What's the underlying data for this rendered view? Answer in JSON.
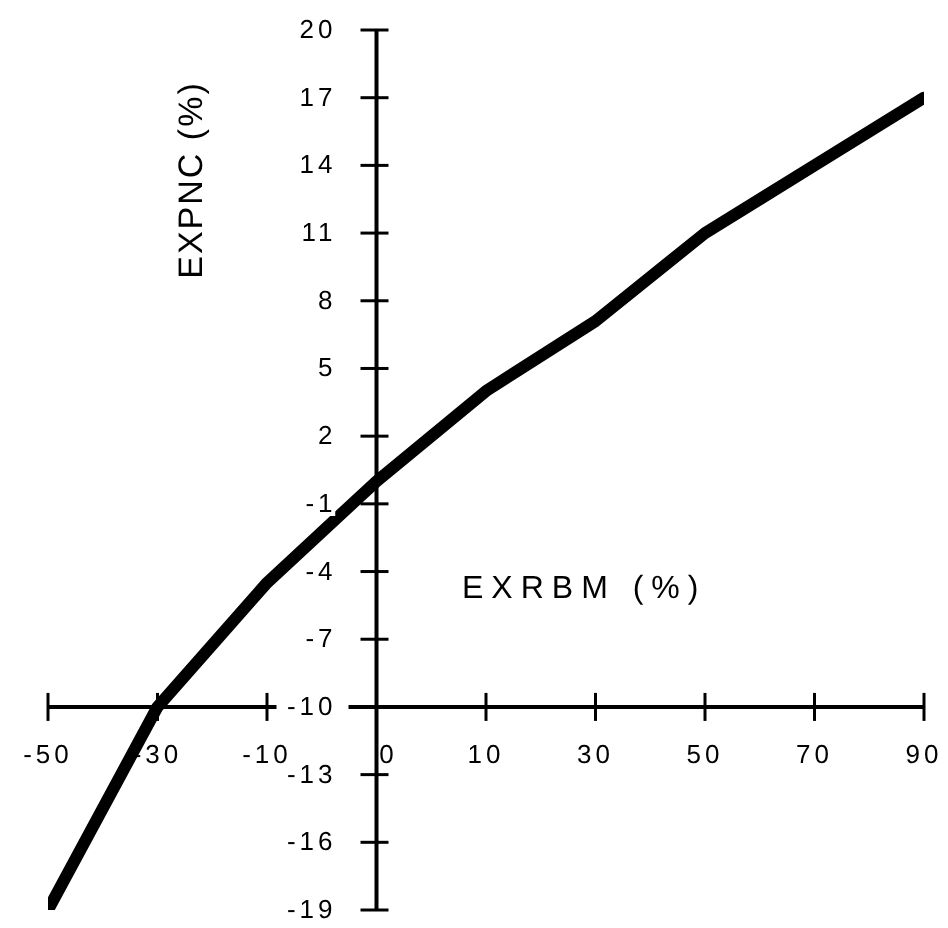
{
  "chart_data": {
    "type": "line",
    "xlabel": "EXRBM (%)",
    "ylabel": "EXPNC (%)",
    "categories": [
      "-50",
      "-30",
      "-10",
      "0",
      "10",
      "30",
      "50",
      "70",
      "90"
    ],
    "series": [
      {
        "color": "#000000",
        "values": [
          -19,
          -10,
          -4.5,
          0,
          4,
          7.1,
          11,
          14,
          17
        ]
      }
    ],
    "ylim": [
      -19,
      20
    ],
    "yticks": [
      20,
      17,
      14,
      11,
      8,
      5,
      2,
      -1,
      -4,
      -7,
      -10,
      -13,
      -16,
      -19
    ],
    "marker": "none",
    "line_style": "solid"
  }
}
